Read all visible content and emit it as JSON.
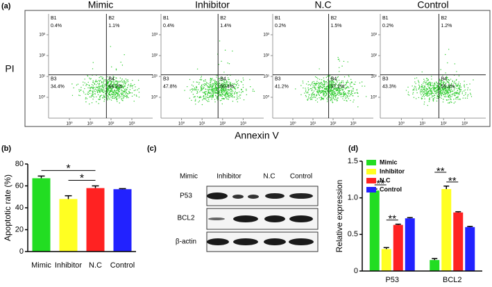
{
  "panel_a": {
    "label": "(a)",
    "xlabel": "Annexin V",
    "ylabel": "PI"
  },
  "blot": {
    "label": "(c)",
    "columns": [
      "Mimic",
      "Inhibitor",
      "N.C",
      "Control"
    ],
    "rows": [
      "P53",
      "BCL2",
      "β-actin"
    ]
  },
  "chart_data": [
    {
      "type": "flow",
      "title": "Mimic",
      "log_scale": true,
      "color": "#2ecc2e",
      "quadrant_color": "#3a7fd0",
      "quadrant_names": [
        "B1",
        "B2",
        "B3",
        "B4"
      ],
      "values": [
        0.4,
        1.1,
        34.4,
        64.2
      ],
      "value_labels": [
        "0.4%",
        "1.1%",
        "34.4%",
        "64.2%"
      ],
      "xlim": [
        0.1,
        10000
      ],
      "ylim": [
        0.1,
        10000
      ],
      "xgate": 60,
      "ygate": 12,
      "xticks": [
        {
          "value": 1,
          "label": "10⁰"
        },
        {
          "value": 10,
          "label": "10¹"
        },
        {
          "value": 100,
          "label": "10²"
        },
        {
          "value": 1000,
          "label": "10³"
        }
      ],
      "yticks": [
        {
          "value": 1,
          "label": "10⁰"
        },
        {
          "value": 10,
          "label": "10¹"
        },
        {
          "value": 100,
          "label": "10²"
        },
        {
          "value": 1000,
          "label": "10³"
        }
      ]
    },
    {
      "type": "flow",
      "title": "Inhibitor",
      "log_scale": true,
      "color": "#2ecc2e",
      "quadrant_color": "#3a7fd0",
      "quadrant_names": [
        "B1",
        "B2",
        "B3",
        "B4"
      ],
      "values": [
        0.4,
        1.4,
        47.8,
        50.4
      ],
      "value_labels": [
        "0.4%",
        "1.4%",
        "47.8%",
        "50.4%"
      ],
      "xlim": [
        0.1,
        10000
      ],
      "ylim": [
        0.1,
        10000
      ],
      "xgate": 60,
      "ygate": 12,
      "xticks": [
        {
          "value": 1,
          "label": "10⁰"
        },
        {
          "value": 10,
          "label": "10¹"
        },
        {
          "value": 100,
          "label": "10²"
        },
        {
          "value": 1000,
          "label": "10³"
        }
      ],
      "yticks": [
        {
          "value": 1,
          "label": "10⁰"
        },
        {
          "value": 10,
          "label": "10¹"
        },
        {
          "value": 100,
          "label": "10²"
        },
        {
          "value": 1000,
          "label": "10³"
        }
      ]
    },
    {
      "type": "flow",
      "title": "N.C",
      "log_scale": true,
      "color": "#2ecc2e",
      "quadrant_color": "#3a7fd0",
      "quadrant_names": [
        "B1",
        "B2",
        "B3",
        "B4"
      ],
      "values": [
        0.2,
        1.5,
        41.2,
        57.1
      ],
      "value_labels": [
        "0.2%",
        "1.5%",
        "41.2%",
        "57.1%"
      ],
      "xlim": [
        0.1,
        10000
      ],
      "ylim": [
        0.1,
        10000
      ],
      "xgate": 60,
      "ygate": 12,
      "xticks": [
        {
          "value": 1,
          "label": "10⁰"
        },
        {
          "value": 10,
          "label": "10¹"
        },
        {
          "value": 100,
          "label": "10²"
        },
        {
          "value": 1000,
          "label": "10³"
        }
      ],
      "yticks": [
        {
          "value": 1,
          "label": "10⁰"
        },
        {
          "value": 10,
          "label": "10¹"
        },
        {
          "value": 100,
          "label": "10²"
        },
        {
          "value": 1000,
          "label": "10³"
        }
      ]
    },
    {
      "type": "flow",
      "title": "Control",
      "log_scale": true,
      "color": "#2ecc2e",
      "quadrant_color": "#3a7fd0",
      "quadrant_names": [
        "B1",
        "B2",
        "B3",
        "B4"
      ],
      "values": [
        0.2,
        1.2,
        43.3,
        55.3
      ],
      "value_labels": [
        "0.2%",
        "1.2%",
        "43.3%",
        "55.3%"
      ],
      "xlim": [
        0.1,
        10000
      ],
      "ylim": [
        0.1,
        10000
      ],
      "xgate": 60,
      "ygate": 12,
      "xticks": [
        {
          "value": 1,
          "label": "10⁰"
        },
        {
          "value": 10,
          "label": "10¹"
        },
        {
          "value": 100,
          "label": "10²"
        },
        {
          "value": 1000,
          "label": "10³"
        }
      ],
      "yticks": [
        {
          "value": 1,
          "label": "10⁰"
        },
        {
          "value": 10,
          "label": "10¹"
        },
        {
          "value": 100,
          "label": "10²"
        },
        {
          "value": 1000,
          "label": "10³"
        }
      ]
    },
    {
      "type": "bar",
      "label": "(b)",
      "ylabel": "Apoptotic rate (%)",
      "categories": [
        "Mimic",
        "Inhibitor",
        "N.C",
        "Control"
      ],
      "values": [
        67,
        48,
        58,
        57
      ],
      "errors": [
        2,
        3,
        2,
        0.5
      ],
      "colors": [
        "#22dd22",
        "#ffff22",
        "#ff2222",
        "#2222ff"
      ],
      "ylim": [
        0,
        80
      ],
      "yticks": [
        0,
        20,
        40,
        60,
        80
      ],
      "annotations": [
        {
          "text": "*",
          "from": 0,
          "to": 2
        },
        {
          "text": "*",
          "from": 1,
          "to": 2
        }
      ]
    },
    {
      "type": "grouped_bar",
      "label": "(d)",
      "ylabel": "Relative expression",
      "legend": "upper left",
      "categories": [
        "P53",
        "BCL2"
      ],
      "series": [
        {
          "name": "Mimic",
          "color": "#22dd22",
          "values": [
            1.1,
            0.15
          ],
          "errors": [
            0.02,
            0.02
          ]
        },
        {
          "name": "Inhibitor",
          "color": "#ffff22",
          "values": [
            0.3,
            1.12
          ],
          "errors": [
            0.02,
            0.04
          ]
        },
        {
          "name": "N.C",
          "color": "#ff2222",
          "values": [
            0.63,
            0.8
          ],
          "errors": [
            0.01,
            0.01
          ]
        },
        {
          "name": "Control",
          "color": "#2222ff",
          "values": [
            0.72,
            0.6
          ],
          "errors": [
            0.01,
            0.01
          ]
        }
      ],
      "ylim": [
        0,
        1.5
      ],
      "yticks": [
        0,
        0.5,
        {
          "value": 1,
          "label": "1.0"
        },
        1.5
      ],
      "annotations": [
        {
          "text": "**",
          "category": 0,
          "from": 0,
          "to": 1
        },
        {
          "text": "**",
          "category": 0,
          "from": 1,
          "to": 2
        },
        {
          "text": "**",
          "category": 1,
          "from": 1,
          "to": 2
        },
        {
          "text": "**",
          "category": 1,
          "from": 0,
          "to": 1
        }
      ]
    }
  ]
}
